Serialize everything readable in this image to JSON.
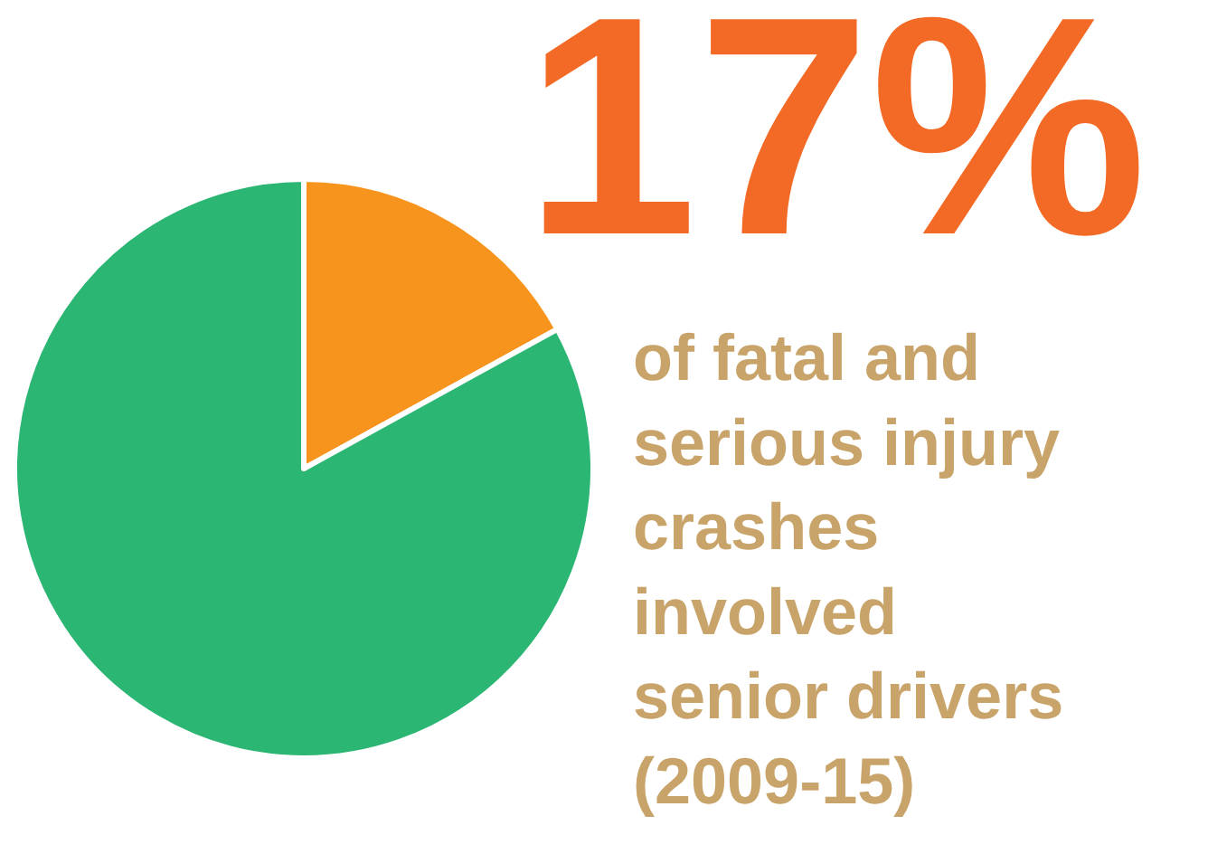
{
  "chart_data": {
    "type": "pie",
    "title": "17%",
    "subtitle": "of fatal and serious injury crashes involved senior drivers (2009-15)",
    "categories": [
      null,
      null
    ],
    "values": [
      17,
      83
    ],
    "colors": [
      "#f7941d",
      "#2bb673"
    ]
  }
}
